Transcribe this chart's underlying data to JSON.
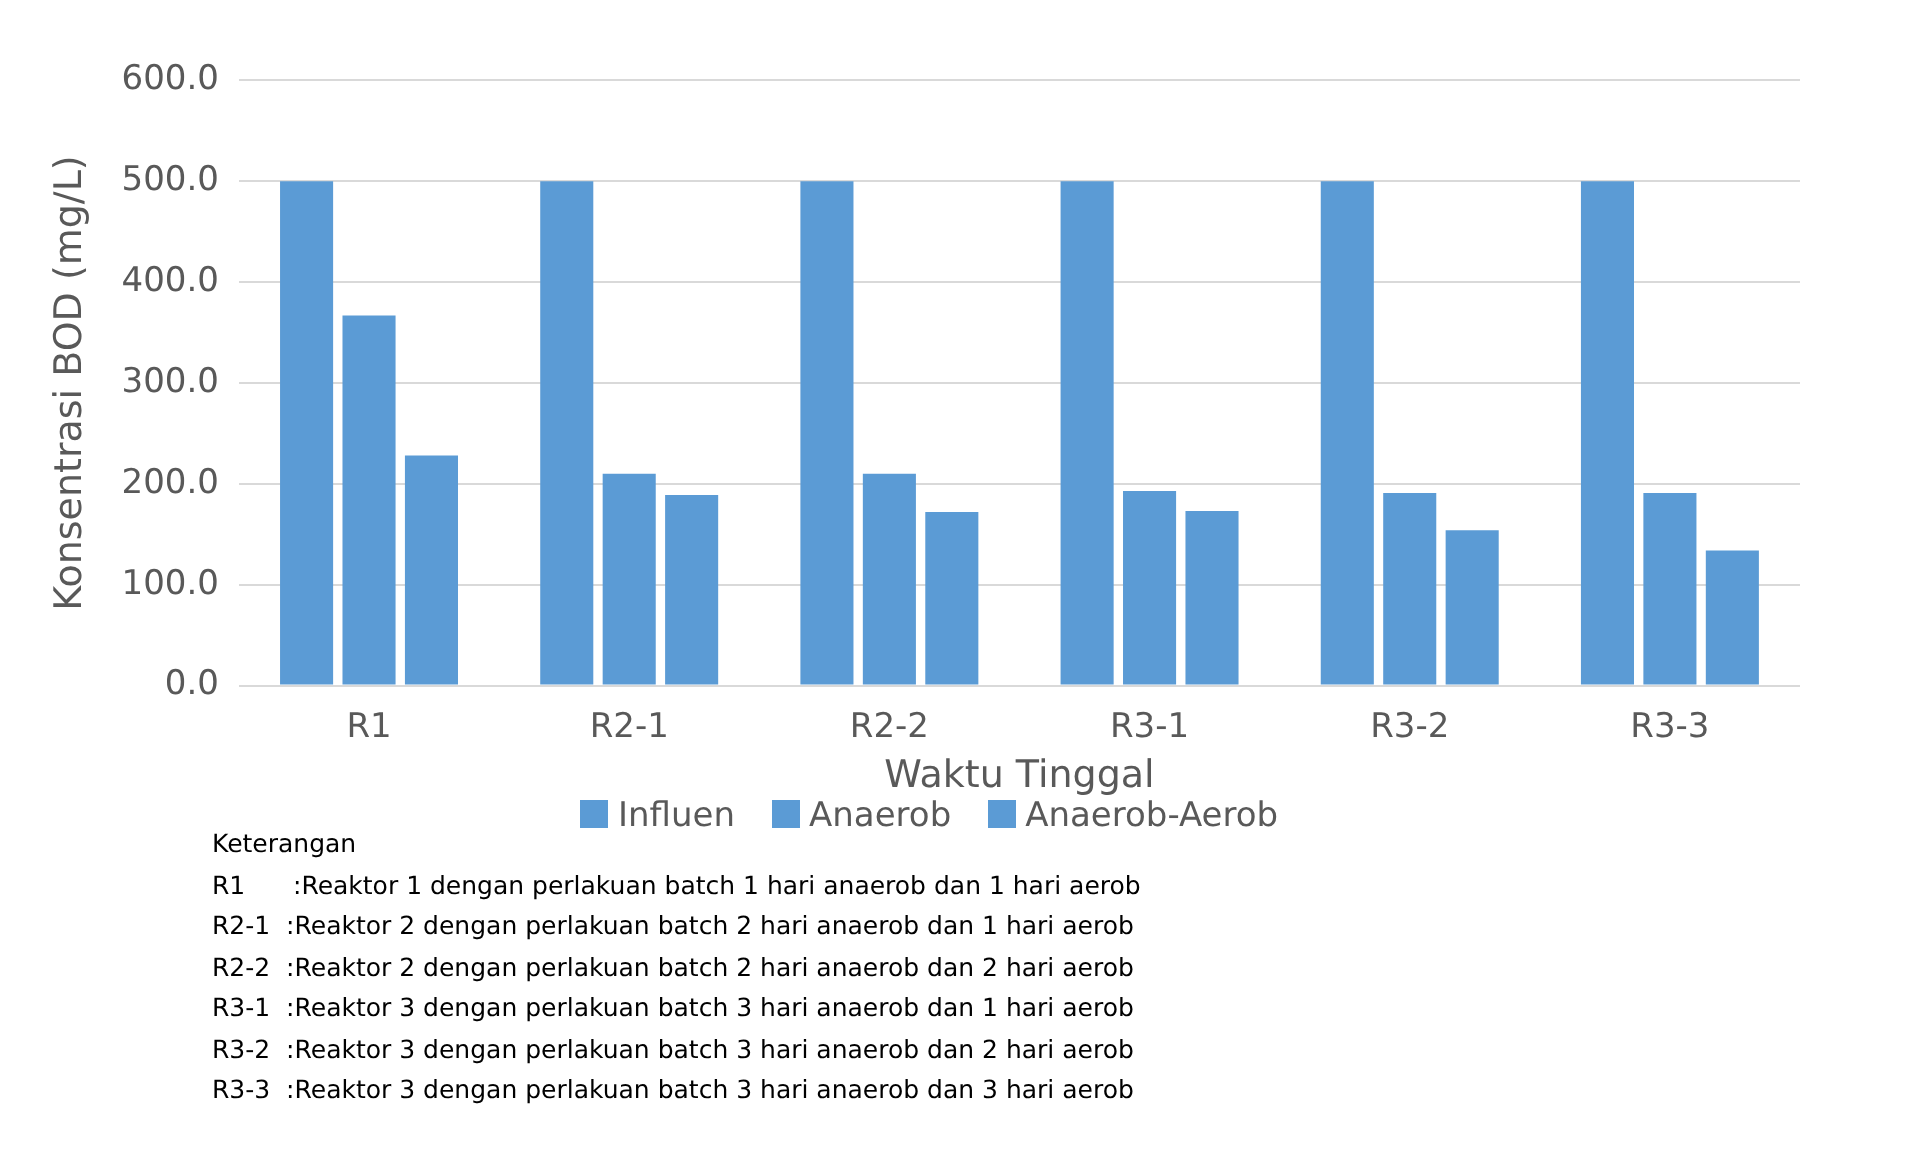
{
  "chart_data": {
    "type": "bar",
    "xlabel": "Waktu Tinggal",
    "ylabel": "Konsentrasi BOD (mg/L)",
    "categories": [
      "R1",
      "R2-1",
      "R2-2",
      "R3-1",
      "R3-2",
      "R3-3"
    ],
    "series": [
      {
        "name": "Influen",
        "color": "#5b9bd5",
        "values": [
          500,
          500,
          500,
          500,
          500,
          500
        ]
      },
      {
        "name": "Anaerob",
        "color": "#5b9bd5",
        "values": [
          367,
          210,
          210,
          193,
          191,
          191
        ]
      },
      {
        "name": "Anaerob-Aerob",
        "color": "#5b9bd5",
        "values": [
          228,
          189,
          172,
          173,
          154,
          134
        ]
      }
    ],
    "ylim": [
      0,
      600
    ],
    "yticks": [
      {
        "value": 0,
        "label": "0.0"
      },
      {
        "value": 100,
        "label": "100.0"
      },
      {
        "value": 200,
        "label": "200.0"
      },
      {
        "value": 300,
        "label": "300.0"
      },
      {
        "value": 400,
        "label": "400.0"
      },
      {
        "value": 500,
        "label": "500.0"
      },
      {
        "value": 600,
        "label": "600.0"
      }
    ],
    "grid": "y",
    "legend": "bottom",
    "annotations": [
      "Keterangan",
      "R1      :Reaktor 1 dengan perlakuan batch 1 hari anaerob dan 1 hari aerob",
      "R2-1  :Reaktor 2 dengan perlakuan batch 2 hari anaerob dan 1 hari aerob",
      "R2-2  :Reaktor 2 dengan perlakuan batch 2 hari anaerob dan 2 hari aerob",
      "R3-1  :Reaktor 3 dengan perlakuan batch 3 hari anaerob dan 1 hari aerob",
      "R3-2  :Reaktor 3 dengan perlakuan batch 3 hari anaerob dan 2 hari aerob",
      "R3-3  :Reaktor 3 dengan perlakuan batch 3 hari anaerob dan 3 hari aerob"
    ]
  }
}
